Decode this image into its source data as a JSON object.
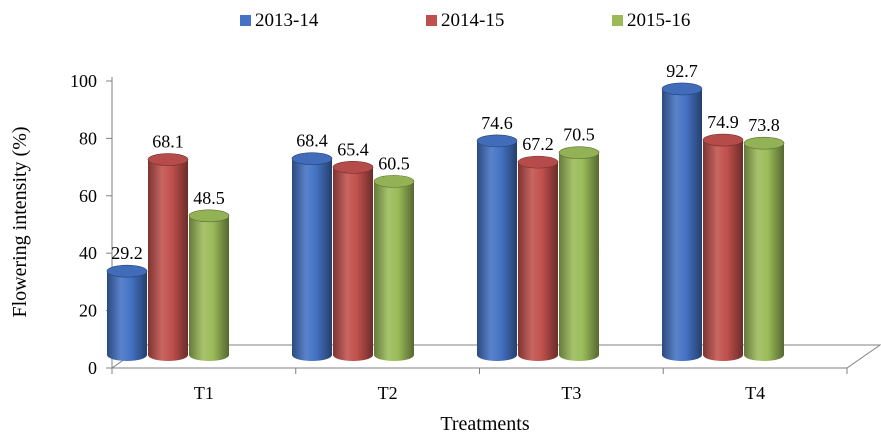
{
  "chart_data": {
    "type": "bar",
    "title": "",
    "xlabel": "Treatments",
    "ylabel": "Flowering intensity (%)",
    "categories": [
      "T1",
      "T2",
      "T3",
      "T4"
    ],
    "ylim": [
      0,
      100
    ],
    "yticks": [
      0,
      20,
      40,
      60,
      80,
      100
    ],
    "grid": false,
    "legend": "top",
    "series": [
      {
        "name": "2013-14",
        "values": [
          29.2,
          68.4,
          74.6,
          92.7
        ],
        "color": "#4472C4"
      },
      {
        "name": "2014-15",
        "values": [
          68.1,
          65.4,
          67.2,
          74.9
        ],
        "color": "#C0504D"
      },
      {
        "name": "2015-16",
        "values": [
          48.5,
          60.5,
          70.5,
          73.8
        ],
        "color": "#9BBB59"
      }
    ]
  }
}
